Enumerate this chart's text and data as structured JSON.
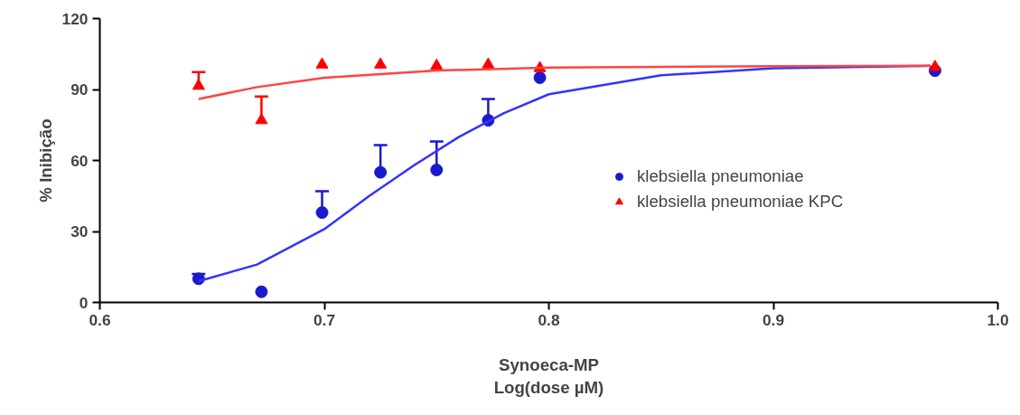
{
  "chart_data": {
    "type": "scatter",
    "xlabel": "Synoeca-MP\nLog(dose µM)",
    "ylabel": "% Inibição",
    "xlim": [
      0.6,
      1.0
    ],
    "xticks": [
      0.6,
      0.7,
      0.8,
      0.9,
      {
        "value": 1.0,
        "label": "1.0"
      }
    ],
    "ylim": [
      0,
      120
    ],
    "yticks": [
      0,
      30,
      60,
      90,
      120
    ],
    "grid": false,
    "legend": "right",
    "series": [
      {
        "name": "klebsiella pneumoniae",
        "color": "#1a1acc",
        "marker": "circle",
        "x": [
          0.644,
          0.672,
          0.699,
          0.725,
          0.75,
          0.773,
          0.796,
          0.972
        ],
        "values": [
          10,
          4.5,
          38,
          55,
          56,
          77,
          95,
          98
        ],
        "errors": [
          [
            10,
            12
          ],
          null,
          [
            38,
            47
          ],
          [
            55,
            66.5
          ],
          [
            56,
            68
          ],
          [
            77,
            86
          ],
          null,
          null
        ]
      },
      {
        "name": "klebsiella pneumoniae KPC",
        "color": "#ff0000",
        "marker": "triangle",
        "x": [
          0.644,
          0.672,
          0.699,
          0.725,
          0.75,
          0.773,
          0.796,
          0.972
        ],
        "values": [
          91.5,
          77,
          100.5,
          100.5,
          100,
          100.5,
          99,
          99.5
        ],
        "errors": [
          [
            91.5,
            97.4
          ],
          [
            77,
            87
          ],
          null,
          null,
          null,
          null,
          null,
          null
        ]
      },
      {
        "type": "line",
        "color": "#3333ff",
        "x": [
          0.644,
          0.67,
          0.7,
          0.72,
          0.74,
          0.76,
          0.78,
          0.8,
          0.85,
          0.9,
          0.97
        ],
        "values": [
          9,
          16,
          31,
          45,
          58,
          70,
          80,
          88,
          96,
          99,
          100
        ]
      },
      {
        "type": "line",
        "color": "#ff4444",
        "x": [
          0.644,
          0.67,
          0.7,
          0.75,
          0.8,
          0.9,
          0.97
        ],
        "values": [
          86,
          91,
          95,
          98,
          99.3,
          99.8,
          100
        ]
      }
    ]
  }
}
